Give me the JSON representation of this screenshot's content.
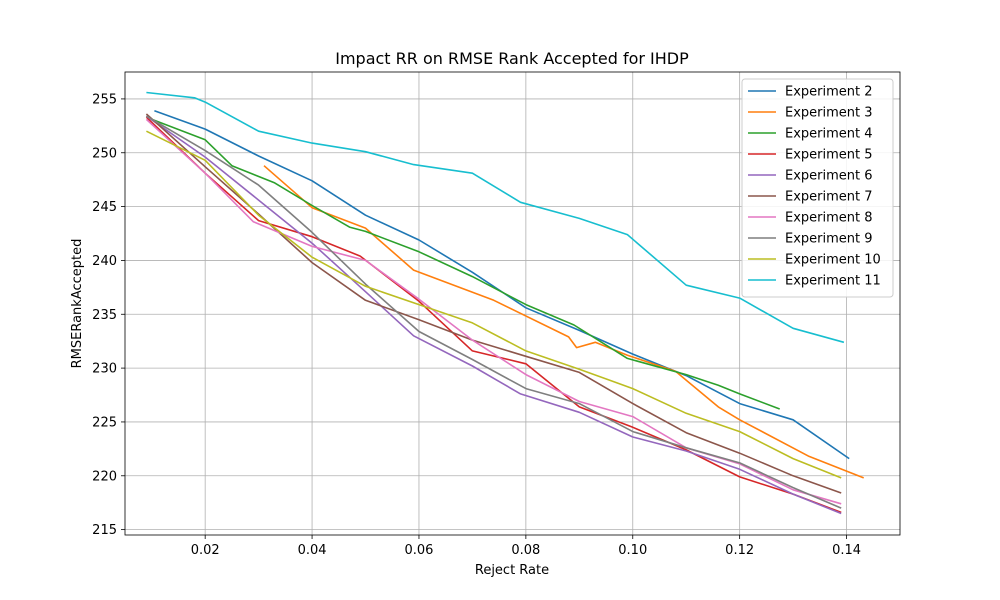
{
  "chart_data": {
    "type": "line",
    "title": "Impact RR on RMSE Rank Accepted for IHDP",
    "xlabel": "Reject Rate",
    "ylabel": "RMSERankAccepted",
    "xlim": [
      0.005,
      0.15
    ],
    "ylim": [
      214.5,
      257.5
    ],
    "xticks": [
      0.02,
      0.04,
      0.06,
      0.08,
      0.1,
      0.12,
      0.14
    ],
    "xtick_labels": [
      "0.02",
      "0.04",
      "0.06",
      "0.08",
      "0.10",
      "0.12",
      "0.14"
    ],
    "yticks": [
      215,
      220,
      225,
      230,
      235,
      240,
      245,
      250,
      255
    ],
    "ytick_labels": [
      "215",
      "220",
      "225",
      "230",
      "235",
      "240",
      "245",
      "250",
      "255"
    ],
    "grid": true,
    "legend_position": "upper-right",
    "series": [
      {
        "name": "Experiment 2",
        "color": "#1f77b4",
        "x": [
          0.0105,
          0.02,
          0.03,
          0.04,
          0.05,
          0.06,
          0.07,
          0.08,
          0.09,
          0.1,
          0.11,
          0.12,
          0.13,
          0.1405
        ],
        "y": [
          253.9,
          252.2,
          249.7,
          247.4,
          244.2,
          241.9,
          238.9,
          235.6,
          233.5,
          231.3,
          229.3,
          226.7,
          225.2,
          221.6
        ]
      },
      {
        "name": "Experiment 3",
        "color": "#ff7f0e",
        "x": [
          0.031,
          0.04,
          0.05,
          0.059,
          0.074,
          0.088,
          0.0895,
          0.093,
          0.099,
          0.108,
          0.116,
          0.12,
          0.133,
          0.1432
        ],
        "y": [
          248.8,
          244.9,
          243.0,
          239.1,
          236.3,
          232.9,
          231.9,
          232.4,
          231.2,
          229.7,
          226.4,
          225.2,
          221.8,
          219.8
        ]
      },
      {
        "name": "Experiment 4",
        "color": "#2ca02c",
        "x": [
          0.009,
          0.02,
          0.025,
          0.033,
          0.04,
          0.047,
          0.05,
          0.06,
          0.07,
          0.08,
          0.089,
          0.099,
          0.11,
          0.116,
          0.12,
          0.1275
        ],
        "y": [
          253.3,
          251.2,
          248.8,
          247.2,
          245.1,
          243.1,
          242.7,
          240.8,
          238.5,
          235.9,
          234.0,
          230.9,
          229.4,
          228.4,
          227.6,
          226.2
        ]
      },
      {
        "name": "Experiment 5",
        "color": "#d62728",
        "x": [
          0.009,
          0.02,
          0.03,
          0.04,
          0.049,
          0.06,
          0.07,
          0.08,
          0.09,
          0.1,
          0.11,
          0.12,
          0.13,
          0.139
        ],
        "y": [
          253.3,
          248.1,
          243.7,
          242.2,
          240.4,
          236.2,
          231.6,
          230.4,
          226.4,
          224.5,
          222.4,
          219.9,
          218.3,
          216.6
        ]
      },
      {
        "name": "Experiment 6",
        "color": "#9467bd",
        "x": [
          0.009,
          0.02,
          0.03,
          0.04,
          0.05,
          0.059,
          0.07,
          0.079,
          0.09,
          0.1,
          0.11,
          0.12,
          0.13,
          0.139
        ],
        "y": [
          253.4,
          249.6,
          245.6,
          241.6,
          237.1,
          233.0,
          230.2,
          227.6,
          225.9,
          223.6,
          222.3,
          220.6,
          218.3,
          216.5
        ]
      },
      {
        "name": "Experiment 7",
        "color": "#8c564b",
        "x": [
          0.009,
          0.02,
          0.03,
          0.04,
          0.05,
          0.06,
          0.07,
          0.08,
          0.09,
          0.1,
          0.11,
          0.12,
          0.13,
          0.139
        ],
        "y": [
          253.6,
          248.7,
          244.3,
          239.8,
          236.3,
          234.5,
          232.6,
          231.1,
          229.6,
          226.7,
          224.0,
          222.1,
          220.0,
          218.4
        ]
      },
      {
        "name": "Experiment 8",
        "color": "#e377c2",
        "x": [
          0.009,
          0.02,
          0.029,
          0.04,
          0.05,
          0.06,
          0.07,
          0.08,
          0.09,
          0.1,
          0.11,
          0.12,
          0.13,
          0.139
        ],
        "y": [
          253.1,
          248.1,
          243.6,
          241.3,
          240.0,
          236.4,
          232.6,
          229.4,
          226.9,
          225.5,
          222.6,
          221.1,
          218.7,
          217.4
        ]
      },
      {
        "name": "Experiment 9",
        "color": "#7f7f7f",
        "x": [
          0.009,
          0.02,
          0.03,
          0.04,
          0.05,
          0.06,
          0.07,
          0.08,
          0.09,
          0.1,
          0.11,
          0.12,
          0.13,
          0.139
        ],
        "y": [
          253.4,
          250.2,
          247.0,
          242.6,
          237.8,
          233.4,
          230.8,
          228.1,
          226.7,
          224.1,
          222.6,
          221.2,
          218.9,
          217.0
        ]
      },
      {
        "name": "Experiment 10",
        "color": "#bcbd22",
        "x": [
          0.009,
          0.02,
          0.03,
          0.04,
          0.05,
          0.06,
          0.07,
          0.08,
          0.09,
          0.1,
          0.11,
          0.12,
          0.13,
          0.139
        ],
        "y": [
          252.0,
          249.3,
          244.2,
          240.3,
          237.6,
          235.9,
          234.2,
          231.6,
          229.9,
          228.1,
          225.8,
          224.1,
          221.6,
          219.8
        ]
      },
      {
        "name": "Experiment 11",
        "color": "#17becf",
        "x": [
          0.009,
          0.018,
          0.02,
          0.03,
          0.04,
          0.05,
          0.059,
          0.07,
          0.079,
          0.09,
          0.099,
          0.11,
          0.12,
          0.13,
          0.1395
        ],
        "y": [
          255.6,
          255.1,
          254.7,
          252.0,
          250.9,
          250.1,
          248.9,
          248.1,
          245.4,
          243.9,
          242.4,
          237.7,
          236.5,
          233.7,
          232.4
        ]
      }
    ]
  }
}
